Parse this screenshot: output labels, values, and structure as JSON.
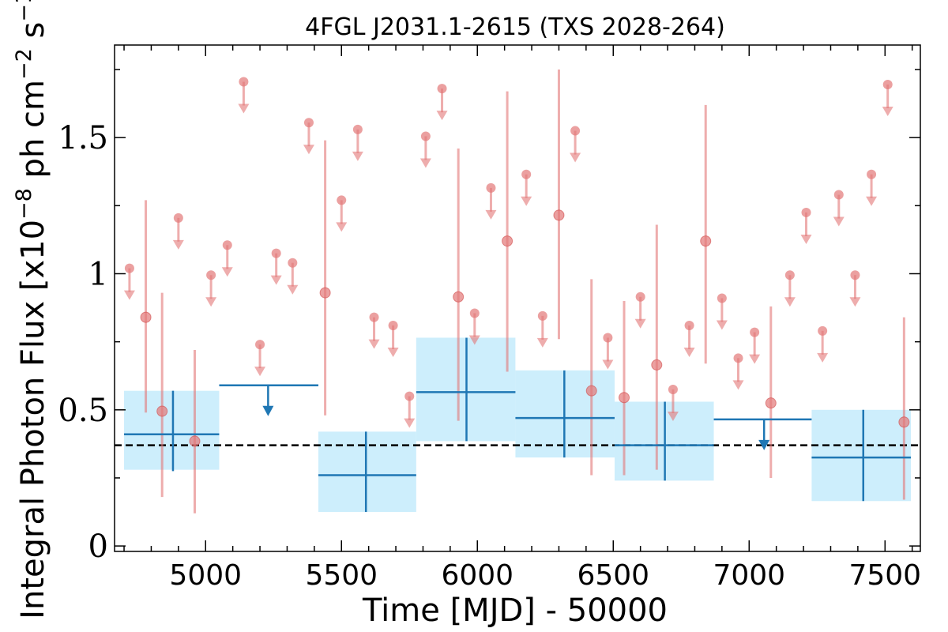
{
  "chart_data": {
    "type": "scatter",
    "title": "4FGL J2031.1-2615 (TXS 2028-264)",
    "xlabel": "Time [MJD] - 50000",
    "ylabel_main": "Integral Photon Flux [x10",
    "ylabel_exp1": "−8",
    "ylabel_mid": " ph cm",
    "ylabel_exp2": "−2",
    "ylabel_s": " s",
    "ylabel_exp3": "−1",
    "ylabel_end": "]",
    "xlim": [
      4665,
      7630
    ],
    "ylim": [
      -0.02,
      1.84
    ],
    "xticks": [
      5000,
      5500,
      6000,
      6500,
      7000,
      7500
    ],
    "xtick_labels": [
      "5000",
      "5500",
      "6000",
      "6500",
      "7000",
      "7500"
    ],
    "yticks": [
      0,
      0.5,
      1,
      1.5
    ],
    "ytick_labels": [
      "0",
      "0.5",
      "1",
      "1.5"
    ],
    "mean_flux": 0.37,
    "colors": {
      "monthly": "#e37777",
      "yearly": "#1f77b4",
      "yearly_band": "#cdeefc",
      "mean": "#000000"
    },
    "series": [
      {
        "kind": "short-bin",
        "detections": [
          {
            "x": 4780,
            "y": 0.84,
            "ylo": 0.49,
            "yhi": 1.27
          },
          {
            "x": 4840,
            "y": 0.495,
            "ylo": 0.18,
            "yhi": 0.93
          },
          {
            "x": 4960,
            "y": 0.385,
            "ylo": 0.12,
            "yhi": 0.72
          },
          {
            "x": 5440,
            "y": 0.93,
            "ylo": 0.48,
            "yhi": 1.49
          },
          {
            "x": 5930,
            "y": 0.915,
            "ylo": 0.46,
            "yhi": 1.46
          },
          {
            "x": 6110,
            "y": 1.12,
            "ylo": 0.64,
            "yhi": 1.67
          },
          {
            "x": 6300,
            "y": 1.215,
            "ylo": 0.76,
            "yhi": 1.75
          },
          {
            "x": 6420,
            "y": 0.57,
            "ylo": 0.26,
            "yhi": 0.98
          },
          {
            "x": 6540,
            "y": 0.545,
            "ylo": 0.26,
            "yhi": 0.9
          },
          {
            "x": 6660,
            "y": 0.665,
            "ylo": 0.28,
            "yhi": 1.18
          },
          {
            "x": 6840,
            "y": 1.12,
            "ylo": 0.67,
            "yhi": 1.62
          },
          {
            "x": 7080,
            "y": 0.525,
            "ylo": 0.25,
            "yhi": 0.88
          },
          {
            "x": 7570,
            "y": 0.455,
            "ylo": 0.17,
            "yhi": 0.84
          }
        ],
        "upper_limits": [
          {
            "x": 4720,
            "y": 1.02
          },
          {
            "x": 4900,
            "y": 1.205
          },
          {
            "x": 5020,
            "y": 0.995
          },
          {
            "x": 5080,
            "y": 1.105
          },
          {
            "x": 5140,
            "y": 1.705
          },
          {
            "x": 5200,
            "y": 0.74
          },
          {
            "x": 5260,
            "y": 1.075
          },
          {
            "x": 5320,
            "y": 1.04
          },
          {
            "x": 5380,
            "y": 1.555
          },
          {
            "x": 5500,
            "y": 1.27
          },
          {
            "x": 5560,
            "y": 1.53
          },
          {
            "x": 5620,
            "y": 0.84
          },
          {
            "x": 5690,
            "y": 0.81
          },
          {
            "x": 5750,
            "y": 0.55
          },
          {
            "x": 5810,
            "y": 1.505
          },
          {
            "x": 5870,
            "y": 1.68
          },
          {
            "x": 5990,
            "y": 0.855
          },
          {
            "x": 6050,
            "y": 1.315
          },
          {
            "x": 6180,
            "y": 1.365
          },
          {
            "x": 6240,
            "y": 0.845
          },
          {
            "x": 6360,
            "y": 1.525
          },
          {
            "x": 6480,
            "y": 0.765
          },
          {
            "x": 6600,
            "y": 0.915
          },
          {
            "x": 6720,
            "y": 0.575
          },
          {
            "x": 6780,
            "y": 0.81
          },
          {
            "x": 6900,
            "y": 0.91
          },
          {
            "x": 6960,
            "y": 0.69
          },
          {
            "x": 7020,
            "y": 0.785
          },
          {
            "x": 7150,
            "y": 0.995
          },
          {
            "x": 7210,
            "y": 1.225
          },
          {
            "x": 7270,
            "y": 0.79
          },
          {
            "x": 7330,
            "y": 1.29
          },
          {
            "x": 7390,
            "y": 0.995
          },
          {
            "x": 7450,
            "y": 1.365
          },
          {
            "x": 7510,
            "y": 1.695
          }
        ]
      },
      {
        "kind": "long-bin",
        "detections": [
          {
            "x0": 4700,
            "x1": 5050,
            "x": 4880,
            "y": 0.41,
            "ylo": 0.275,
            "yhi": 0.57,
            "band_lo": 0.28,
            "band_hi": 0.57
          },
          {
            "x0": 5415,
            "x1": 5775,
            "x": 5590,
            "y": 0.26,
            "ylo": 0.125,
            "yhi": 0.42,
            "band_lo": 0.125,
            "band_hi": 0.42
          },
          {
            "x0": 5775,
            "x1": 6140,
            "x": 5960,
            "y": 0.565,
            "ylo": 0.385,
            "yhi": 0.765,
            "band_lo": 0.385,
            "band_hi": 0.765
          },
          {
            "x0": 6140,
            "x1": 6505,
            "x": 6320,
            "y": 0.47,
            "ylo": 0.325,
            "yhi": 0.645,
            "band_lo": 0.325,
            "band_hi": 0.645
          },
          {
            "x0": 6505,
            "x1": 6870,
            "x": 6690,
            "y": 0.37,
            "ylo": 0.24,
            "yhi": 0.53,
            "band_lo": 0.24,
            "band_hi": 0.53
          },
          {
            "x0": 7230,
            "x1": 7595,
            "x": 7420,
            "y": 0.325,
            "ylo": 0.165,
            "yhi": 0.5,
            "band_lo": 0.165,
            "band_hi": 0.5
          }
        ],
        "upper_limits": [
          {
            "x0": 5050,
            "x1": 5415,
            "x": 5230,
            "y": 0.59
          },
          {
            "x0": 6870,
            "x1": 7230,
            "x": 7055,
            "y": 0.465
          }
        ]
      }
    ]
  }
}
